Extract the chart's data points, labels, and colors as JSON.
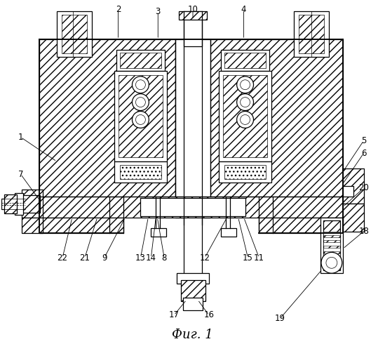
{
  "bg_color": "#ffffff",
  "line_color": "#000000",
  "figure_caption": "Фиг. 1",
  "hatch_density": "///",
  "lw_main": 0.9,
  "lw_thin": 0.5
}
